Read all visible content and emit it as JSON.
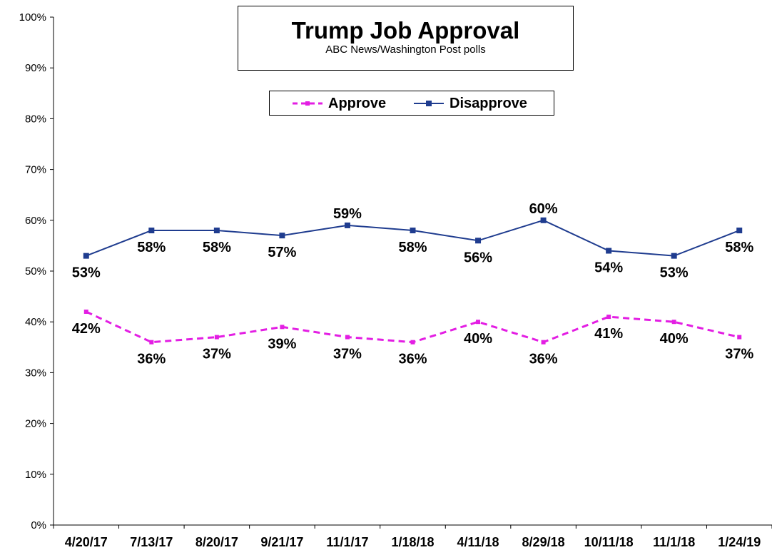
{
  "chart_data": {
    "type": "line",
    "title": "Trump Job Approval",
    "subtitle": "ABC News/Washington  Post polls",
    "categories": [
      "4/20/17",
      "7/13/17",
      "8/20/17",
      "9/21/17",
      "11/1/17",
      "1/18/18",
      "4/11/18",
      "8/29/18",
      "10/11/18",
      "11/1/18",
      "1/24/19"
    ],
    "series": [
      {
        "name": "Approve",
        "values": [
          42,
          36,
          37,
          39,
          37,
          36,
          40,
          36,
          41,
          40,
          37
        ],
        "color": "#e31ee3",
        "style": "dashed"
      },
      {
        "name": "Disapprove",
        "values": [
          53,
          58,
          58,
          57,
          59,
          58,
          56,
          60,
          54,
          53,
          58
        ],
        "color": "#1f3c8f",
        "style": "solid-square-markers"
      }
    ],
    "ylim": [
      0,
      100
    ],
    "yticks": [
      "0%",
      "10%",
      "20%",
      "30%",
      "40%",
      "50%",
      "60%",
      "70%",
      "80%",
      "90%",
      "100%"
    ],
    "value_suffix": "%",
    "legend": "top-center",
    "grid": false
  }
}
